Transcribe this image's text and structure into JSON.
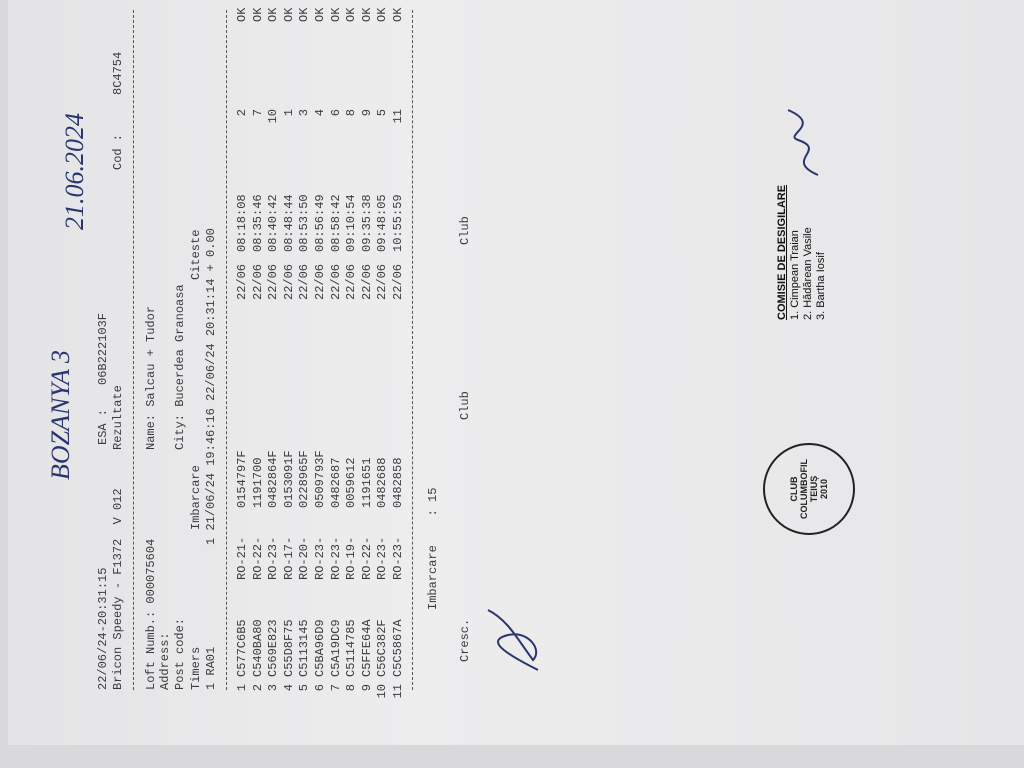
{
  "header": {
    "datetime": "22/06/24-20:31:15",
    "esa_label": "ESA :",
    "esa": "06B222103F",
    "device": "Bricon Speedy - F1372  V 012",
    "report": "Rezultate",
    "cod_label": "Cod :",
    "cod": "8C4754"
  },
  "details": {
    "loft": "Loft Numb.: 000075604",
    "name": "Name: Salcau + Tudor",
    "address": "Address:",
    "post_code": "Post code:",
    "city": "City: Bucerdea Granoasa"
  },
  "timers": {
    "headers": [
      "Timers",
      "Imbarcare",
      "Citeste"
    ],
    "row": [
      "1 RA01",
      "1 21/06/24 19:46:16 22/06/24 20:31:14 + 0.00"
    ]
  },
  "table": {
    "rows": [
      [
        "1",
        "C577C6B5",
        "RO-21-",
        "0154797F",
        "22/06",
        "08:18:08",
        "2",
        "OK"
      ],
      [
        "2",
        "C540BA80",
        "RO-22-",
        "1191700",
        "22/06",
        "08:35:46",
        "7",
        "OK"
      ],
      [
        "3",
        "C569E823",
        "RO-23-",
        "0482864F",
        "22/06",
        "08:40:42",
        "10",
        "OK"
      ],
      [
        "4",
        "C55D8F75",
        "RO-17-",
        "0153091F",
        "22/06",
        "08:48:44",
        "1",
        "OK"
      ],
      [
        "5",
        "C5113145",
        "RO-20-",
        "0228965F",
        "22/06",
        "08:53:50",
        "3",
        "OK"
      ],
      [
        "6",
        "C5BA96D9",
        "RO-23-",
        "0509793F",
        "22/06",
        "08:56:49",
        "4",
        "OK"
      ],
      [
        "7",
        "C5A19DC9",
        "RO-23-",
        "0482687",
        "22/06",
        "08:58:42",
        "6",
        "OK"
      ],
      [
        "8",
        "C5114785",
        "RO-19-",
        "0059612",
        "22/06",
        "09:10:54",
        "8",
        "OK"
      ],
      [
        "9",
        "C5FFE64A",
        "RO-22-",
        "1191651",
        "22/06",
        "09:35:38",
        "9",
        "OK"
      ],
      [
        "10",
        "C56C382F",
        "RO-23-",
        "0482688",
        "22/06",
        "09:48:05",
        "5",
        "OK"
      ],
      [
        "11",
        "C5C5867A",
        "RO-23-",
        "0482858",
        "22/06",
        "10:55:59",
        "11",
        "OK"
      ]
    ]
  },
  "footer": {
    "imbarcare": "Imbarcare    : 15",
    "cresc": "Cresc.",
    "club1": "Club",
    "club2": "Club"
  },
  "handwritten": {
    "race": "BOZANYA 3",
    "date": "21.06.2024"
  },
  "stamp": {
    "lines": [
      "CLUB",
      "COLUMBOFIL",
      "TEIUȘ",
      "2010"
    ]
  },
  "commission": {
    "title": "COMISIE DE DESIGILARE",
    "members": [
      "1. Cimpean Traian",
      "2. Hădărean Vasile",
      "3. Bartha Iosif"
    ]
  }
}
